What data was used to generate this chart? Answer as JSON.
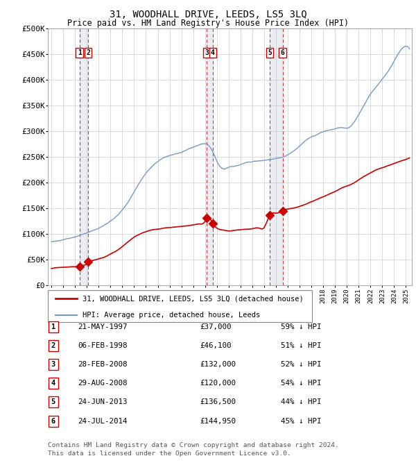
{
  "title": "31, WOODHALL DRIVE, LEEDS, LS5 3LQ",
  "subtitle": "Price paid vs. HM Land Registry's House Price Index (HPI)",
  "title_fontsize": 10,
  "subtitle_fontsize": 8.5,
  "background_color": "#ffffff",
  "plot_bg_color": "#ffffff",
  "grid_color": "#cccccc",
  "hpi_line_color": "#7799cc",
  "price_line_color": "#cc0000",
  "transactions": [
    {
      "num": 1,
      "date_str": "21-MAY-1997",
      "year": 1997.38,
      "price": 37000,
      "pct": "59% ↓ HPI"
    },
    {
      "num": 2,
      "date_str": "06-FEB-1998",
      "year": 1998.1,
      "price": 46100,
      "pct": "51% ↓ HPI"
    },
    {
      "num": 3,
      "date_str": "28-FEB-2008",
      "year": 2008.16,
      "price": 132000,
      "pct": "52% ↓ HPI"
    },
    {
      "num": 4,
      "date_str": "29-AUG-2008",
      "year": 2008.66,
      "price": 120000,
      "pct": "54% ↓ HPI"
    },
    {
      "num": 5,
      "date_str": "24-JUN-2013",
      "year": 2013.48,
      "price": 136500,
      "pct": "44% ↓ HPI"
    },
    {
      "num": 6,
      "date_str": "24-JUL-2014",
      "year": 2014.56,
      "price": 144950,
      "pct": "45% ↓ HPI"
    }
  ],
  "legend_label_red": "31, WOODHALL DRIVE, LEEDS, LS5 3LQ (detached house)",
  "legend_label_blue": "HPI: Average price, detached house, Leeds",
  "table_rows": [
    [
      "1",
      "21-MAY-1997",
      "£37,000",
      "59% ↓ HPI"
    ],
    [
      "2",
      "06-FEB-1998",
      "£46,100",
      "51% ↓ HPI"
    ],
    [
      "3",
      "28-FEB-2008",
      "£132,000",
      "52% ↓ HPI"
    ],
    [
      "4",
      "29-AUG-2008",
      "£120,000",
      "54% ↓ HPI"
    ],
    [
      "5",
      "24-JUN-2013",
      "£136,500",
      "44% ↓ HPI"
    ],
    [
      "6",
      "24-JUL-2014",
      "£144,950",
      "45% ↓ HPI"
    ]
  ],
  "footer_line1": "Contains HM Land Registry data © Crown copyright and database right 2024.",
  "footer_line2": "This data is licensed under the Open Government Licence v3.0.",
  "ylim": [
    0,
    500000
  ],
  "ytick_step": 50000,
  "xmin": 1994.7,
  "xmax": 2025.5,
  "hpi_years": [
    1995.0,
    1995.5,
    1996.0,
    1996.5,
    1997.0,
    1997.5,
    1998.0,
    1998.5,
    1999.0,
    1999.5,
    2000.0,
    2000.5,
    2001.0,
    2001.5,
    2002.0,
    2002.5,
    2003.0,
    2003.5,
    2004.0,
    2004.5,
    2005.0,
    2005.5,
    2006.0,
    2006.5,
    2007.0,
    2007.5,
    2008.0,
    2008.3,
    2008.6,
    2009.0,
    2009.5,
    2010.0,
    2010.5,
    2011.0,
    2011.5,
    2012.0,
    2012.5,
    2013.0,
    2013.5,
    2014.0,
    2014.5,
    2015.0,
    2015.5,
    2016.0,
    2016.5,
    2017.0,
    2017.5,
    2018.0,
    2018.5,
    2019.0,
    2019.5,
    2020.0,
    2020.5,
    2021.0,
    2021.5,
    2022.0,
    2022.5,
    2023.0,
    2023.5,
    2024.0,
    2024.5,
    2025.0,
    2025.3
  ],
  "hpi_vals": [
    85000,
    87000,
    89000,
    92000,
    95000,
    99000,
    103000,
    108000,
    113000,
    120000,
    128000,
    138000,
    150000,
    165000,
    185000,
    205000,
    222000,
    235000,
    245000,
    252000,
    255000,
    258000,
    262000,
    267000,
    272000,
    276000,
    278000,
    275000,
    265000,
    245000,
    230000,
    232000,
    235000,
    238000,
    242000,
    244000,
    246000,
    248000,
    250000,
    252000,
    255000,
    260000,
    268000,
    278000,
    288000,
    295000,
    300000,
    305000,
    308000,
    310000,
    312000,
    310000,
    318000,
    335000,
    355000,
    375000,
    390000,
    405000,
    420000,
    440000,
    460000,
    470000,
    465000
  ],
  "red_years": [
    1995.0,
    1995.5,
    1996.0,
    1996.5,
    1997.0,
    1997.4,
    1997.5,
    1998.0,
    1998.2,
    1998.5,
    1999.0,
    1999.5,
    2000.0,
    2000.5,
    2001.0,
    2001.5,
    2002.0,
    2002.5,
    2003.0,
    2003.5,
    2004.0,
    2004.5,
    2005.0,
    2005.5,
    2006.0,
    2006.5,
    2007.0,
    2007.5,
    2008.0,
    2008.2,
    2008.5,
    2008.7,
    2009.0,
    2009.5,
    2010.0,
    2010.5,
    2011.0,
    2011.5,
    2012.0,
    2012.5,
    2013.0,
    2013.5,
    2014.0,
    2014.6,
    2015.0,
    2015.5,
    2016.0,
    2016.5,
    2017.0,
    2017.5,
    2018.0,
    2018.5,
    2019.0,
    2019.5,
    2020.0,
    2020.5,
    2021.0,
    2021.5,
    2022.0,
    2022.5,
    2023.0,
    2023.5,
    2024.0,
    2024.5,
    2025.0,
    2025.3
  ],
  "red_vals": [
    33000,
    35000,
    35500,
    36000,
    36500,
    37000,
    38000,
    42000,
    46100,
    49000,
    52000,
    56000,
    62000,
    68000,
    76000,
    85000,
    94000,
    100000,
    105000,
    108000,
    110000,
    112000,
    113000,
    114000,
    115000,
    116000,
    118000,
    120000,
    125000,
    132000,
    128000,
    120000,
    112000,
    108000,
    106000,
    107000,
    108000,
    109000,
    110000,
    111000,
    112000,
    136500,
    140000,
    144950,
    148000,
    150000,
    153000,
    157000,
    162000,
    167000,
    172000,
    177000,
    182000,
    188000,
    193000,
    198000,
    205000,
    212000,
    218000,
    224000,
    228000,
    232000,
    236000,
    240000,
    244000,
    247000
  ]
}
